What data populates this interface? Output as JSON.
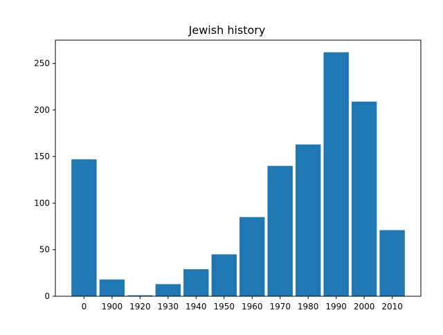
{
  "chart_data": {
    "type": "bar",
    "title": "Jewish history",
    "xlabel": "",
    "ylabel": "",
    "categories": [
      "0",
      "1900",
      "1920",
      "1930",
      "1940",
      "1950",
      "1960",
      "1970",
      "1980",
      "1990",
      "2000",
      "2010"
    ],
    "values": [
      147,
      18,
      1,
      13,
      29,
      45,
      85,
      140,
      163,
      262,
      209,
      71
    ],
    "ylim": [
      0,
      275
    ],
    "yticks": [
      0,
      50,
      100,
      150,
      200,
      250
    ],
    "grid": false,
    "legend": "none",
    "bar_color": "#1f77b4"
  }
}
